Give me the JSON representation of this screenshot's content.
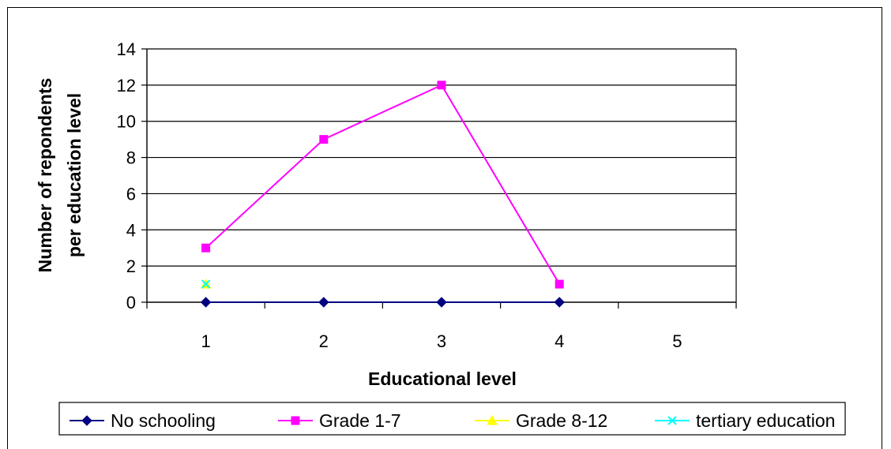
{
  "chart_data": {
    "type": "line",
    "title": "",
    "xlabel": "Educational level",
    "ylabel_lines": [
      "Number of repondents",
      "per education level"
    ],
    "x_ticks": [
      "1",
      "2",
      "3",
      "4",
      "5"
    ],
    "xlim": [
      0.5,
      5.5
    ],
    "ylim": [
      0,
      14
    ],
    "y_ticks": [
      "0",
      "2",
      "4",
      "6",
      "8",
      "10",
      "12",
      "14"
    ],
    "grid": "horizontal",
    "legend_position": "bottom",
    "series": [
      {
        "name": "No schooling",
        "color": "#000080",
        "marker": "diamond",
        "points": [
          {
            "x": 1,
            "y": 0
          },
          {
            "x": 2,
            "y": 0
          },
          {
            "x": 3,
            "y": 0
          },
          {
            "x": 4,
            "y": 0
          }
        ]
      },
      {
        "name": "Grade 1-7",
        "color": "#ff00ff",
        "marker": "square",
        "points": [
          {
            "x": 1,
            "y": 3
          },
          {
            "x": 2,
            "y": 9
          },
          {
            "x": 3,
            "y": 12
          },
          {
            "x": 4,
            "y": 1
          }
        ]
      },
      {
        "name": "Grade 8-12",
        "color": "#ffff00",
        "marker": "triangle",
        "points": [
          {
            "x": 1,
            "y": 1
          }
        ]
      },
      {
        "name": "tertiary education",
        "color": "#00ffff",
        "marker": "x",
        "points": [
          {
            "x": 1,
            "y": 1
          }
        ]
      }
    ]
  }
}
